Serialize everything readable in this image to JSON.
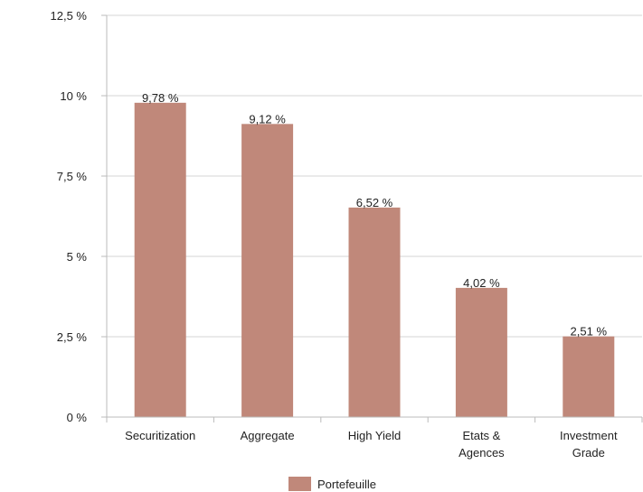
{
  "chart_data": {
    "type": "bar",
    "categories": [
      "Securitization",
      "Aggregate",
      "High Yield",
      "Etats & Agences",
      "Investment Grade"
    ],
    "category_lines": [
      [
        "Securitization"
      ],
      [
        "Aggregate"
      ],
      [
        "High Yield"
      ],
      [
        "Etats &",
        "Agences"
      ],
      [
        "Investment",
        "Grade"
      ]
    ],
    "series": [
      {
        "name": "Portefeuille",
        "values": [
          9.78,
          9.12,
          6.52,
          4.02,
          2.51
        ],
        "color": "#c0887a"
      }
    ],
    "data_labels": [
      "9,78 %",
      "9,12 %",
      "6,52 %",
      "4,02 %",
      "2,51 %"
    ],
    "yticks": [
      0,
      2.5,
      5,
      7.5,
      10,
      12.5
    ],
    "ytick_labels": [
      "0 %",
      "2,5 %",
      "5 %",
      "7,5 %",
      "10 %",
      "12,5 %"
    ],
    "ylim": [
      0,
      12.5
    ],
    "grid": true,
    "legend_position": "bottom-center",
    "axis_color": "#bbbbbb",
    "grid_color": "#d4d4d4"
  }
}
